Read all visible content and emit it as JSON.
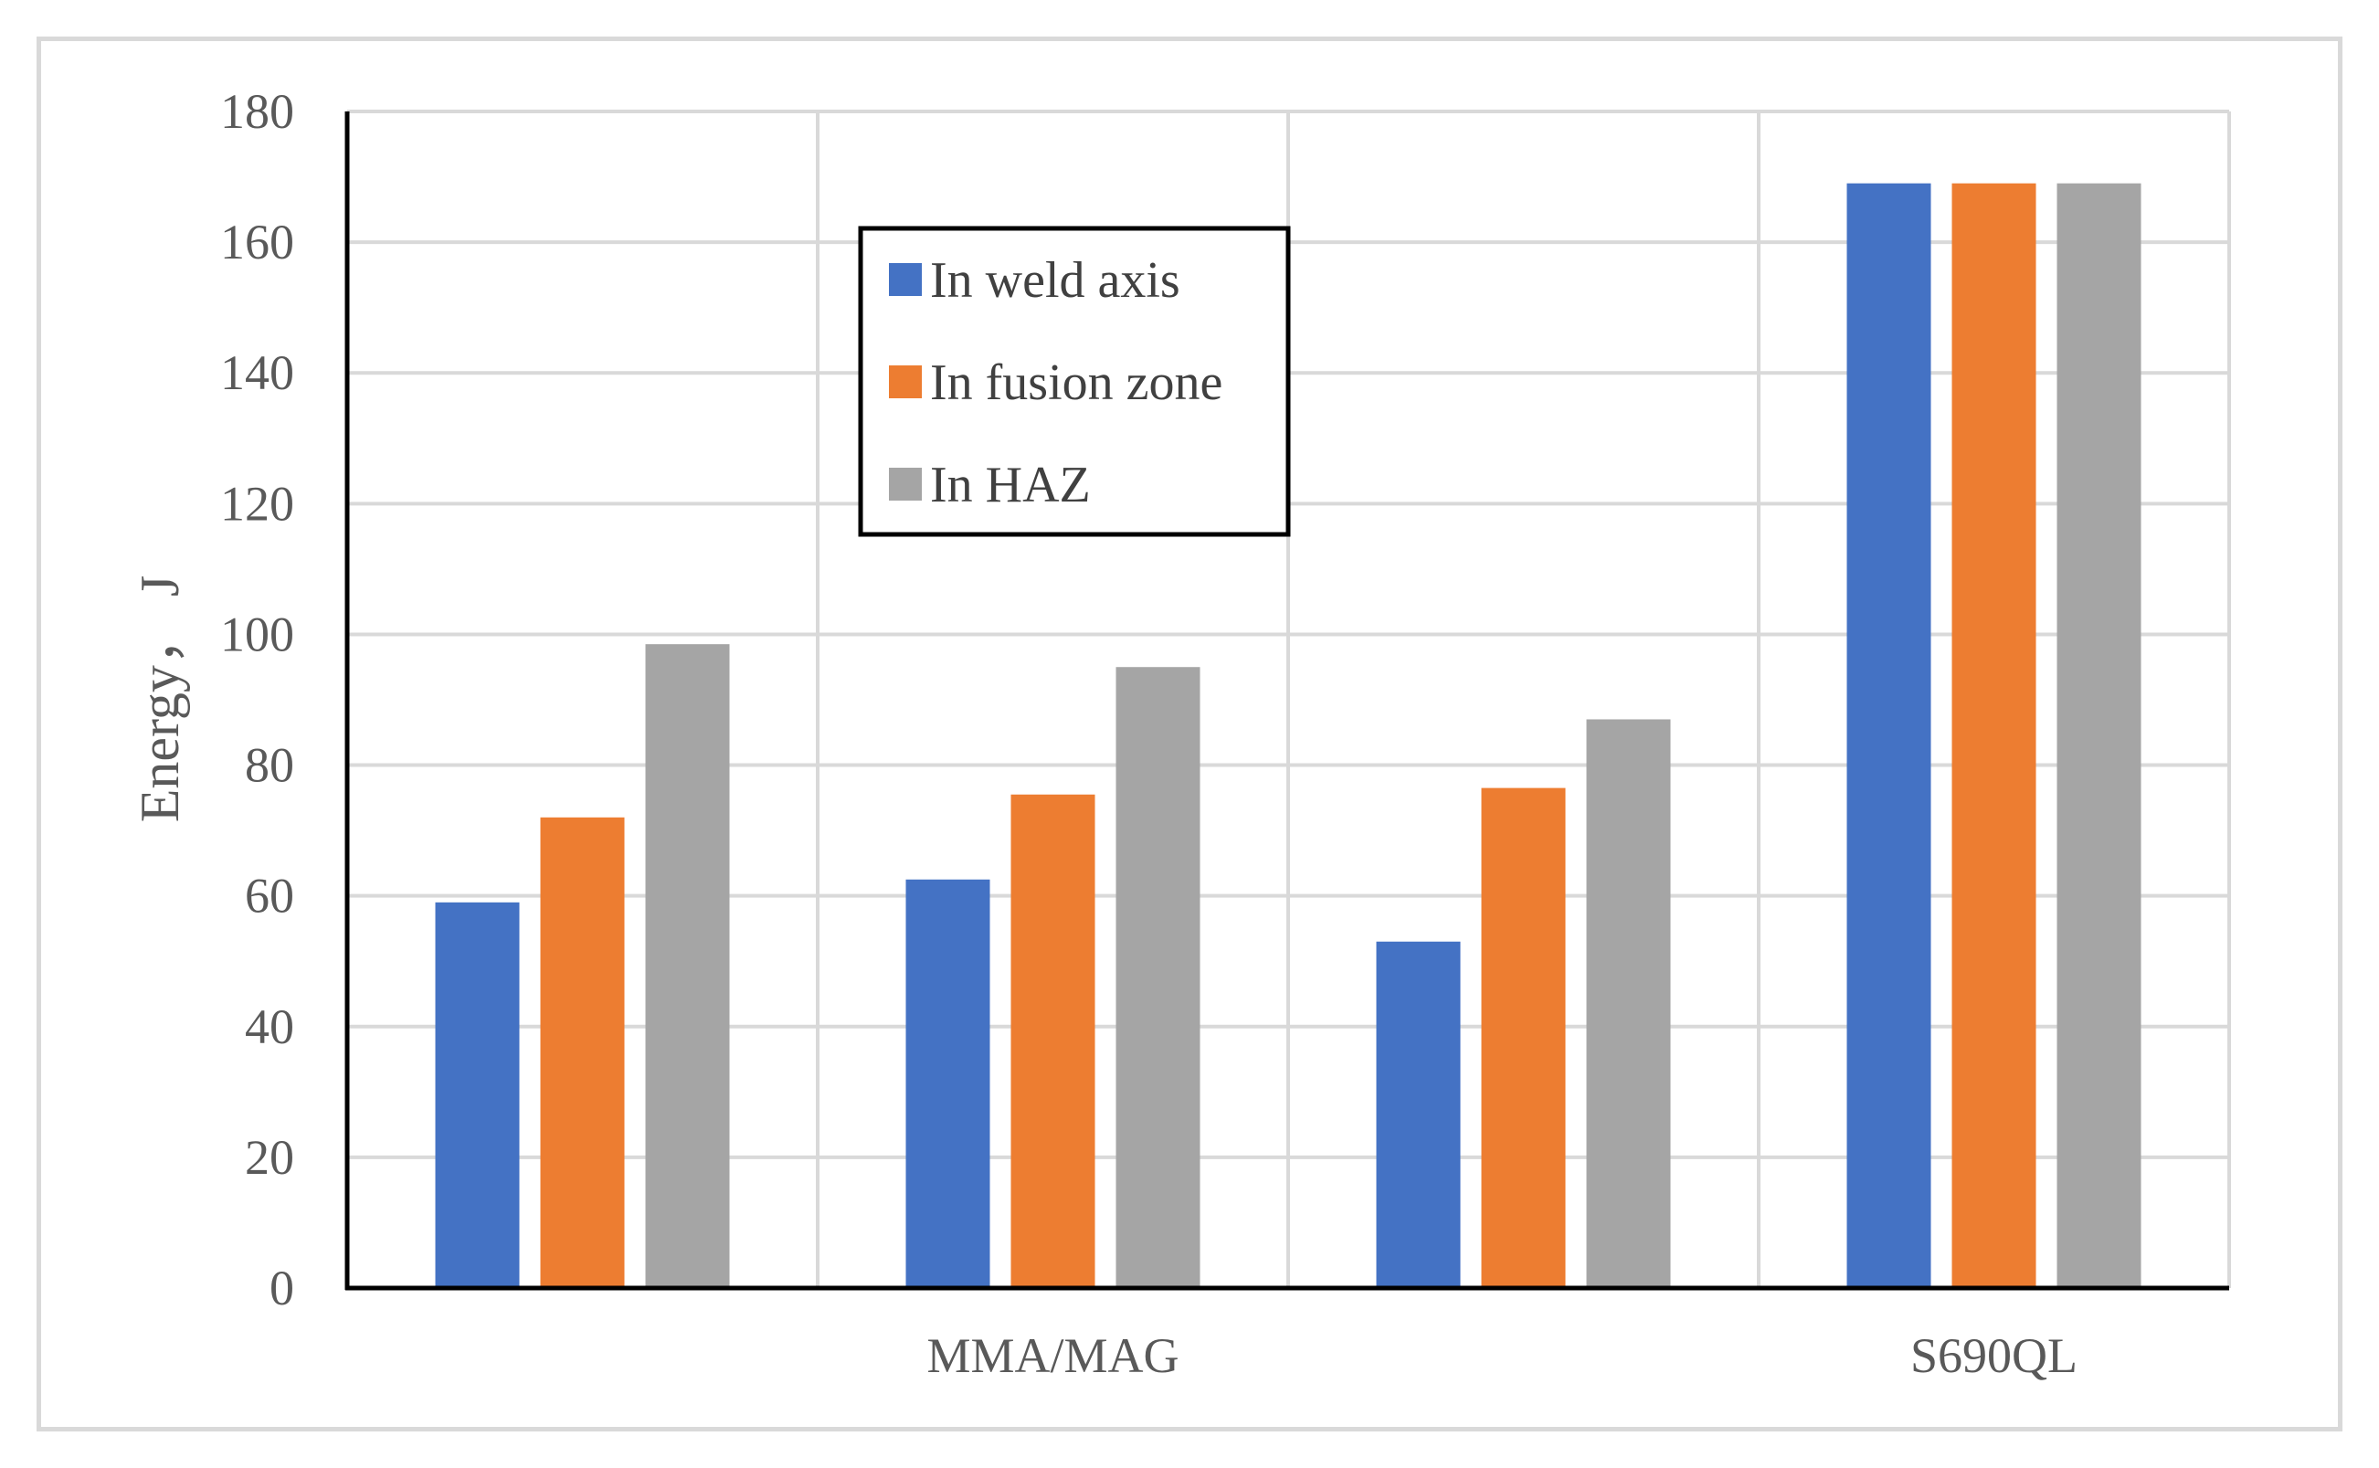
{
  "chart_data": {
    "type": "bar",
    "title": "",
    "xlabel": "",
    "ylabel": "Energy， J",
    "ylim": [
      0,
      180
    ],
    "yticks": [
      0,
      20,
      40,
      60,
      80,
      100,
      120,
      140,
      160,
      180
    ],
    "categories": [
      "",
      "MMA/MAG",
      "",
      "S690QL"
    ],
    "series": [
      {
        "name": "In weld axis",
        "color": "#4472c4",
        "values": [
          59,
          62.5,
          53,
          169
        ]
      },
      {
        "name": "In fusion zone",
        "color": "#ed7d31",
        "values": [
          72,
          75.5,
          76.5,
          169
        ]
      },
      {
        "name": "In HAZ",
        "color": "#a5a5a5",
        "values": [
          98.5,
          95,
          87,
          169
        ]
      }
    ],
    "grid": true,
    "legend_position": "top-center"
  }
}
